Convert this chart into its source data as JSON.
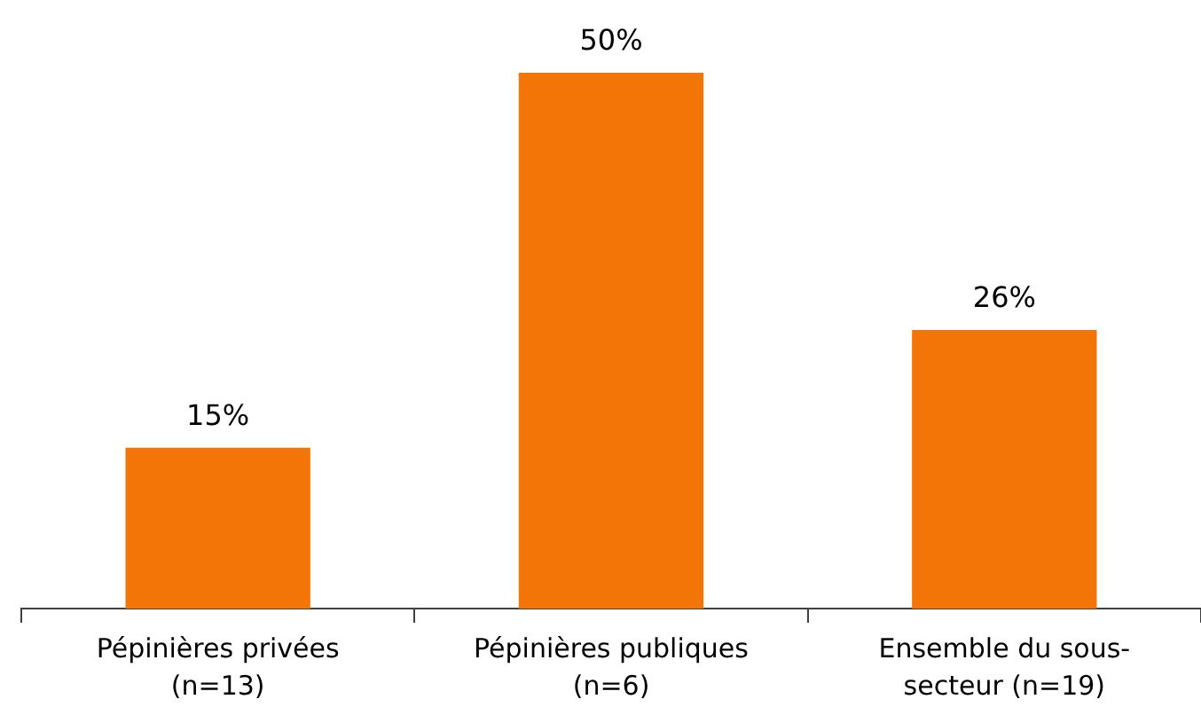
{
  "chart_data": {
    "type": "bar",
    "categories": [
      "Pépinières privées (n=13)",
      "Pépinières publiques (n=6)",
      "Ensemble du sous-secteur (n=19)"
    ],
    "values": [
      15,
      50,
      26
    ],
    "value_labels": [
      "15%",
      "50%",
      "26%"
    ],
    "color": "#f37407"
  }
}
